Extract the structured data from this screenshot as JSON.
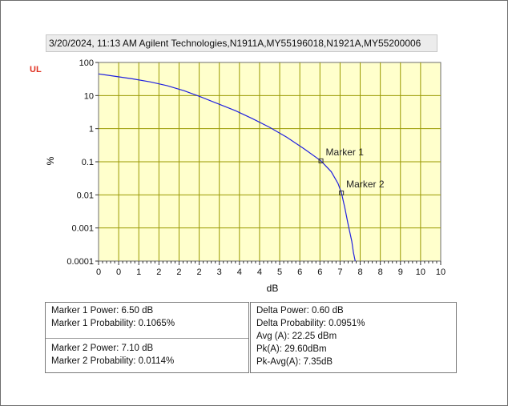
{
  "header": {
    "title": "3/20/2024, 11:13 AM  Agilent Technologies,N1911A,MY55196018,N1921A,MY55200006"
  },
  "channel_label": "UL",
  "colors": {
    "plot_bg": "#ffffcc",
    "grid": "#9a9a00",
    "curve": "#2020e0",
    "channel_label": "#e03020"
  },
  "chart_data": {
    "type": "line",
    "title": "",
    "xlabel": "dB",
    "ylabel": "%",
    "yscale": "log",
    "xlim": [
      0,
      10
    ],
    "ylim": [
      0.0001,
      100
    ],
    "x_tick_labels": [
      "0",
      "0",
      "1",
      "2",
      "2",
      "2",
      "3",
      "4",
      "4",
      "5",
      "6",
      "6",
      "7",
      "8",
      "8",
      "9",
      "10",
      "10"
    ],
    "y_tick_labels": [
      "100",
      "10",
      "1",
      "0.1",
      "0.01",
      "0.001",
      "0.0001"
    ],
    "grid": true,
    "series": [
      {
        "x": [
          0,
          0.5,
          1.0,
          1.5,
          2.0,
          2.5,
          3.0,
          3.5,
          4.0,
          4.5,
          5.0,
          5.5,
          6.0,
          6.5,
          6.8,
          7.0,
          7.1,
          7.2,
          7.3,
          7.4,
          7.45,
          7.5
        ],
        "y": [
          45,
          38,
          32,
          26,
          20,
          14,
          9,
          5.6,
          3.5,
          2.0,
          1.1,
          0.55,
          0.25,
          0.1065,
          0.05,
          0.022,
          0.0114,
          0.004,
          0.0012,
          0.0004,
          0.00018,
          0.0001
        ]
      }
    ],
    "annotations": [
      {
        "label": "Marker 1",
        "x": 6.5,
        "y": 0.1065
      },
      {
        "label": "Marker 2",
        "x": 7.1,
        "y": 0.0114
      }
    ]
  },
  "info": {
    "m1_power": "Marker 1 Power: 6.50 dB",
    "m1_prob": "Marker 1 Probability: 0.1065%",
    "m2_power": "Marker 2 Power: 7.10 dB",
    "m2_prob": "Marker 2 Probability: 0.0114%",
    "delta_power": "Delta Power: 0.60 dB",
    "delta_prob": "Delta Probability: 0.0951%",
    "avg": "Avg (A): 22.25 dBm",
    "pk": "Pk(A): 29.60dBm",
    "pk_avg": "Pk-Avg(A): 7.35dB"
  }
}
